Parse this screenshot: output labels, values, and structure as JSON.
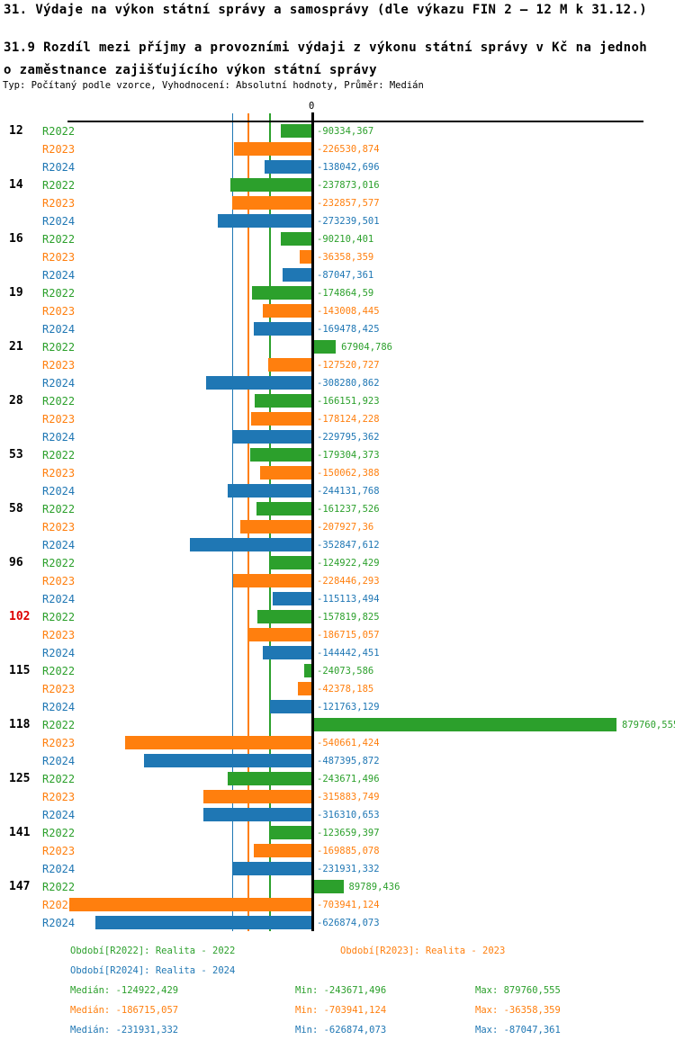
{
  "chart_data": {
    "type": "bar",
    "orientation": "horizontal",
    "title": "31. Výdaje na výkon státní správy a samosprávy (dle výkazu FIN 2 – 12 M k 31.12.)",
    "subtitle_line1": "31.9 Rozdíl mezi příjmy a provozními výdaji z výkonu státní správy v Kč na jednoh",
    "subtitle_line2": "o zaměstnance zajišťujícího výkon státní správy",
    "meta": "Typ: Počítaný podle vzorce, Vyhodnocení: Absolutní hodnoty, Průměr: Medián",
    "axis": {
      "zero_label": "0"
    },
    "series": [
      "R2022",
      "R2023",
      "R2024"
    ],
    "colors": {
      "R2022": "#2ca02c",
      "R2023": "#ff7f0e",
      "R2024": "#1f77b4",
      "highlight": "#dd0000",
      "axis": "#000000"
    },
    "xlim_values": [
      -703941.124,
      879760.555
    ],
    "groups": [
      {
        "id": "12",
        "highlight": false,
        "values": [
          "-90334,367",
          "-226530,874",
          "-138042,696"
        ]
      },
      {
        "id": "14",
        "highlight": false,
        "values": [
          "-237873,016",
          "-232857,577",
          "-273239,501"
        ]
      },
      {
        "id": "16",
        "highlight": false,
        "values": [
          "-90210,401",
          "-36358,359",
          "-87047,361"
        ]
      },
      {
        "id": "19",
        "highlight": false,
        "values": [
          "-174864,59",
          "-143008,445",
          "-169478,425"
        ]
      },
      {
        "id": "21",
        "highlight": false,
        "values": [
          "67904,786",
          "-127520,727",
          "-308280,862"
        ]
      },
      {
        "id": "28",
        "highlight": false,
        "values": [
          "-166151,923",
          "-178124,228",
          "-229795,362"
        ]
      },
      {
        "id": "53",
        "highlight": false,
        "values": [
          "-179304,373",
          "-150062,388",
          "-244131,768"
        ]
      },
      {
        "id": "58",
        "highlight": false,
        "values": [
          "-161237,526",
          "-207927,36",
          "-352847,612"
        ]
      },
      {
        "id": "96",
        "highlight": false,
        "values": [
          "-124922,429",
          "-228446,293",
          "-115113,494"
        ]
      },
      {
        "id": "102",
        "highlight": true,
        "values": [
          "-157819,825",
          "-186715,057",
          "-144442,451"
        ]
      },
      {
        "id": "115",
        "highlight": false,
        "values": [
          "-24073,586",
          "-42378,185",
          "-121763,129"
        ]
      },
      {
        "id": "118",
        "highlight": false,
        "values": [
          "879760,555",
          "-540661,424",
          "-487395,872"
        ]
      },
      {
        "id": "125",
        "highlight": false,
        "values": [
          "-243671,496",
          "-315883,749",
          "-316310,653"
        ]
      },
      {
        "id": "141",
        "highlight": false,
        "values": [
          "-123659,397",
          "-169885,078",
          "-231931,332"
        ]
      },
      {
        "id": "147",
        "highlight": false,
        "values": [
          "89789,436",
          "-703941,124",
          "-626874,073"
        ]
      }
    ],
    "medians": {
      "R2022": "-124922,429",
      "R2023": "-186715,057",
      "R2024": "-231931,332"
    }
  },
  "legend": {
    "periods": [
      {
        "series": "R2022",
        "label": "Období[R2022]: Realita - 2022"
      },
      {
        "series": "R2023",
        "label": "Období[R2023]: Realita - 2023"
      },
      {
        "series": "R2024",
        "label": "Období[R2024]: Realita - 2024"
      }
    ],
    "stats": [
      {
        "series": "R2022",
        "median": "Medián: -124922,429",
        "min": "Min: -243671,496",
        "max": "Max: 879760,555"
      },
      {
        "series": "R2023",
        "median": "Medián: -186715,057",
        "min": "Min: -703941,124",
        "max": "Max: -36358,359"
      },
      {
        "series": "R2024",
        "median": "Medián: -231931,332",
        "min": "Min: -626874,073",
        "max": "Max: -87047,361"
      }
    ]
  }
}
